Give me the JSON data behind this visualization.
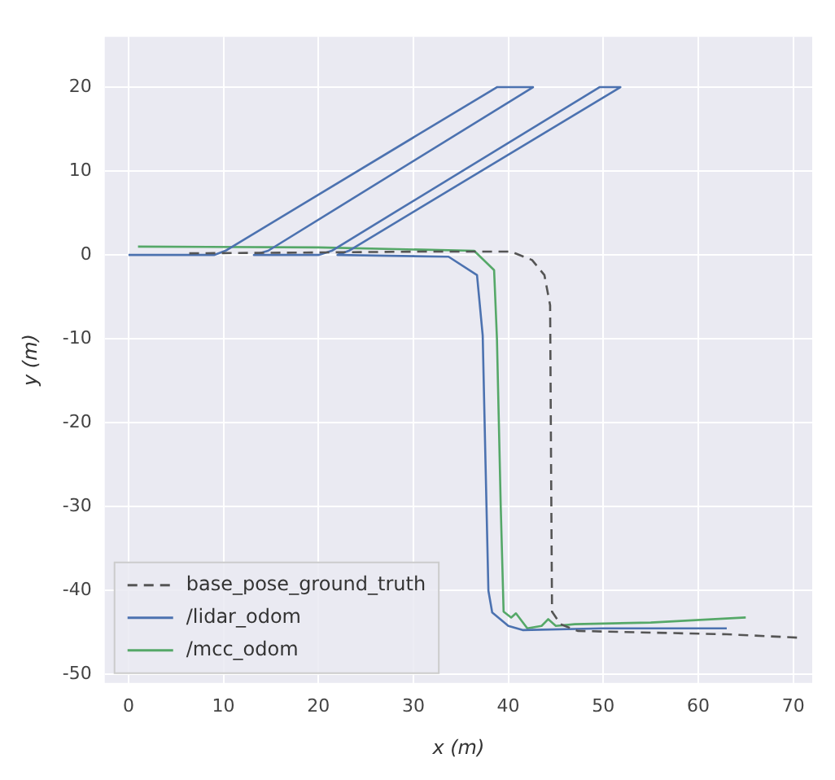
{
  "chart_data": {
    "type": "line",
    "xlabel": "x (m)",
    "ylabel": "y (m)",
    "xlim": [
      -2.5,
      72
    ],
    "ylim": [
      -51,
      26
    ],
    "xticks": [
      0,
      10,
      20,
      30,
      40,
      50,
      60,
      70
    ],
    "yticks": [
      -50,
      -40,
      -30,
      -20,
      -10,
      0,
      10,
      20
    ],
    "grid": true,
    "legend": "bottom left",
    "marker": "none",
    "series": [
      {
        "name": "base_pose_ground_truth",
        "color": "#555555",
        "line_style": "dashed",
        "x": [
          6.4,
          20,
          30,
          40.3,
          42.5,
          43.8,
          44.4,
          44.5,
          44.6,
          45.5,
          47.3,
          55,
          63,
          70.5
        ],
        "values": [
          0.2,
          0.3,
          0.4,
          0.4,
          -0.6,
          -2.4,
          -6,
          -25,
          -42.5,
          -44,
          -44.8,
          -45,
          -45.2,
          -45.6
        ]
      },
      {
        "name": "/lidar_odom",
        "color": "#4c72b0",
        "line_style": "solid",
        "x": [
          0,
          9,
          10.2,
          38.8,
          42.6,
          14.7,
          13.2,
          20,
          21.4,
          49.6,
          51.8,
          23.2,
          22,
          33.7,
          36.7,
          37.3,
          37.6,
          37.9,
          38.3,
          40,
          41.5,
          50,
          63
        ],
        "values": [
          0,
          0,
          0.5,
          20,
          20,
          0.5,
          0,
          0,
          0.5,
          20,
          20,
          0.5,
          0,
          -0.2,
          -2.4,
          -9.6,
          -25,
          -40,
          -42.6,
          -44.2,
          -44.7,
          -44.5,
          -44.5
        ]
      },
      {
        "name": "/mcc_odom",
        "color": "#55a868",
        "line_style": "solid",
        "x": [
          1,
          20,
          36.4,
          38.5,
          38.8,
          39.2,
          39.5,
          40.3,
          40.8,
          42,
          43.5,
          44.2,
          45,
          47,
          55,
          65
        ],
        "values": [
          1,
          0.9,
          0.5,
          -1.8,
          -10,
          -30,
          -42.5,
          -43.2,
          -42.7,
          -44.5,
          -44.2,
          -43.4,
          -44.2,
          -44,
          -43.8,
          -43.2
        ]
      }
    ]
  }
}
